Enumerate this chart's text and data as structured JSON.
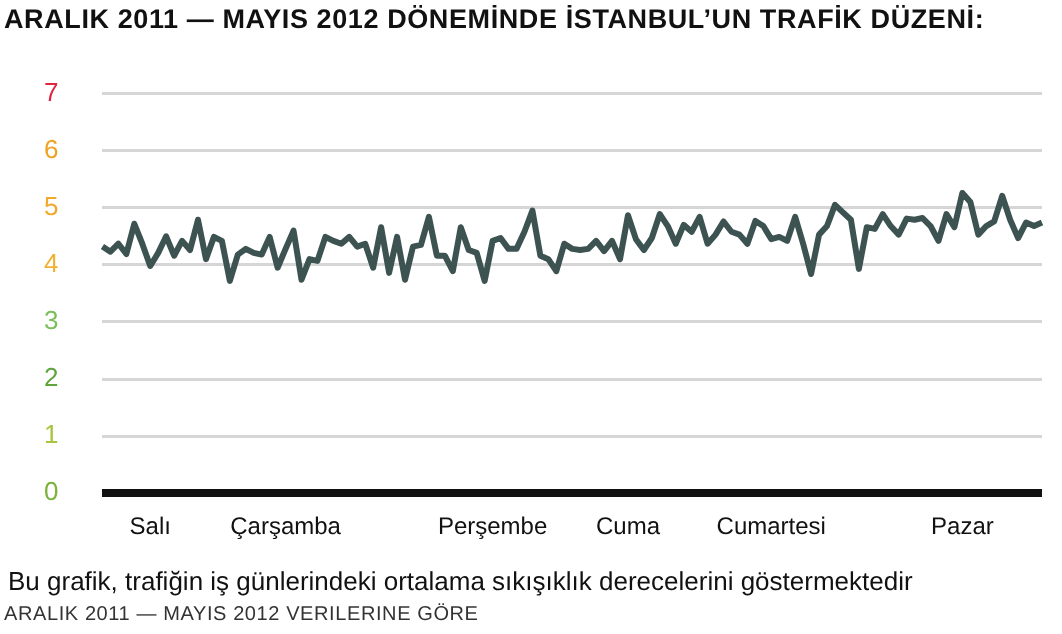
{
  "chart_data": {
    "type": "line",
    "title": "ARALIK 2011 — MAYIS 2012 DÖNEMİNDE İSTANBUL’UN TRAFİK DÜZENİ:",
    "categories": [
      null,
      null,
      null,
      null,
      null,
      null,
      "Salı",
      null,
      null,
      null,
      null,
      null,
      null,
      null,
      null,
      null,
      null,
      null,
      null,
      null,
      null,
      null,
      null,
      "Çarşamba",
      null,
      null,
      null,
      null,
      null,
      null,
      null,
      null,
      null,
      null,
      null,
      null,
      null,
      null,
      null,
      null,
      null,
      null,
      null,
      null,
      null,
      null,
      null,
      null,
      null,
      "Perşembe",
      null,
      null,
      null,
      null,
      null,
      null,
      null,
      null,
      null,
      null,
      null,
      null,
      null,
      null,
      null,
      null,
      "Cuma",
      null,
      null,
      null,
      null,
      null,
      null,
      null,
      null,
      null,
      null,
      null,
      null,
      null,
      null,
      null,
      null,
      null,
      "Cumartesi",
      null,
      null,
      null,
      null,
      null,
      null,
      null,
      null,
      null,
      null,
      null,
      null,
      null,
      null,
      null,
      null,
      null,
      null,
      null,
      null,
      null,
      null,
      null,
      "Pazar",
      null,
      null,
      null,
      null,
      null,
      null,
      null,
      null,
      null,
      null
    ],
    "series": [
      {
        "color": "#3d5352",
        "values": [
          4.32,
          4.23,
          4.37,
          4.19,
          4.72,
          4.37,
          3.98,
          4.21,
          4.5,
          4.16,
          4.42,
          4.26,
          4.79,
          4.1,
          4.49,
          4.42,
          3.72,
          4.18,
          4.28,
          4.21,
          4.18,
          4.49,
          3.95,
          4.28,
          4.6,
          3.74,
          4.1,
          4.07,
          4.49,
          4.42,
          4.37,
          4.49,
          4.32,
          4.37,
          3.95,
          4.66,
          3.86,
          4.49,
          3.74,
          4.32,
          4.35,
          4.84,
          4.16,
          4.16,
          3.89,
          4.66,
          4.26,
          4.21,
          3.72,
          4.42,
          4.47,
          4.28,
          4.28,
          4.58,
          4.95,
          4.16,
          4.1,
          3.89,
          4.37,
          4.28,
          4.26,
          4.28,
          4.42,
          4.24,
          4.42,
          4.1,
          4.87,
          4.45,
          4.26,
          4.47,
          4.89,
          4.68,
          4.37,
          4.7,
          4.58,
          4.84,
          4.37,
          4.53,
          4.76,
          4.58,
          4.53,
          4.37,
          4.77,
          4.68,
          4.45,
          4.49,
          4.42,
          4.84,
          4.37,
          3.84,
          4.53,
          4.68,
          5.05,
          4.92,
          4.79,
          3.93,
          4.66,
          4.63,
          4.89,
          4.68,
          4.53,
          4.81,
          4.79,
          4.82,
          4.68,
          4.42,
          4.89,
          4.66,
          5.26,
          5.1,
          4.53,
          4.68,
          4.76,
          5.21,
          4.79,
          4.47,
          4.74,
          4.68,
          4.74
        ]
      }
    ],
    "ylim": [
      0,
      7
    ],
    "yticks": [
      0,
      1,
      2,
      3,
      4,
      5,
      6,
      7
    ],
    "grid": "y",
    "marker": "none",
    "line_style": "solid",
    "legend": false,
    "annotations": [
      "Bu grafik, trafiğin iş günlerindeki ortalama sıkışıklık derecelerini göstermektedir",
      "ARALIK 2011 — MAYIS 2012 VERILERINE GÖRE"
    ]
  }
}
